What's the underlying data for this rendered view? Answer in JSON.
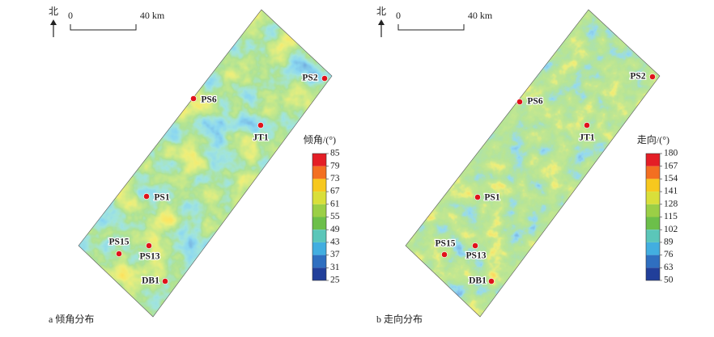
{
  "north": "北",
  "scale": {
    "zero": "0",
    "distance": "40 km"
  },
  "panels": [
    {
      "caption": "a 倾角分布",
      "legend": {
        "title": "倾角/(°)",
        "ticks": [
          85,
          79,
          73,
          67,
          61,
          55,
          49,
          43,
          37,
          31,
          25
        ],
        "colors": [
          "#e41e26",
          "#f36f21",
          "#f7c81e",
          "#d9df3a",
          "#9bcf46",
          "#6cbf4a",
          "#5bc6b9",
          "#42aee0",
          "#2f6fc0",
          "#213f9a"
        ]
      },
      "wells": [
        "PS2",
        "PS6",
        "JT1",
        "PS1",
        "PS15",
        "PS13",
        "DB1"
      ]
    },
    {
      "caption": "b 走向分布",
      "legend": {
        "title": "走向/(°)",
        "ticks": [
          180,
          167,
          154,
          141,
          128,
          115,
          102,
          89,
          76,
          63,
          50
        ],
        "colors": [
          "#e41e26",
          "#f36f21",
          "#f7c81e",
          "#d9df3a",
          "#9bcf46",
          "#6cbf4a",
          "#5bc6b9",
          "#42aee0",
          "#2f6fc0",
          "#213f9a"
        ]
      },
      "wells": [
        "PS2",
        "PS6",
        "JT1",
        "PS1",
        "PS15",
        "PS13",
        "DB1"
      ]
    }
  ]
}
